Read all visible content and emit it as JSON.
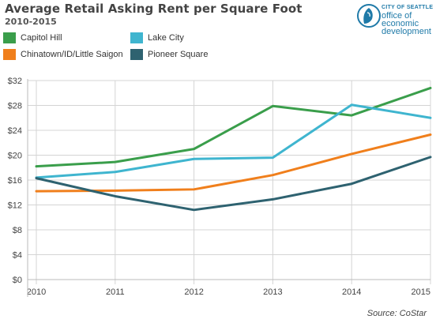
{
  "title": "Average Retail Asking Rent per Square Foot",
  "subtitle": "2010-2015",
  "logo": {
    "city": "CITY OF SEATTLE",
    "dept_lines": [
      "office of",
      "economic",
      "development"
    ],
    "icon": "seattle-seal-icon",
    "color": "#1f7aa8"
  },
  "source": "Source: CoStar",
  "chart_data": {
    "type": "line",
    "x": [
      "2010",
      "2011",
      "2012",
      "2013",
      "2014",
      "2015"
    ],
    "ylim": [
      0,
      32
    ],
    "yticks": [
      "$0",
      "$4",
      "$8",
      "$12",
      "$16",
      "$20",
      "$24",
      "$28",
      "$32"
    ],
    "grid": true,
    "legend": "top",
    "series": [
      {
        "name": "Capitol Hill",
        "color": "#3a9e4b",
        "values": [
          18.2,
          18.9,
          21.0,
          27.9,
          26.4,
          30.8
        ]
      },
      {
        "name": "Lake City",
        "color": "#3fb5cf",
        "values": [
          16.4,
          17.3,
          19.4,
          19.6,
          28.1,
          26.0
        ]
      },
      {
        "name": "Chinatown/ID/Little Saigon",
        "color": "#f07f1c",
        "values": [
          14.2,
          14.3,
          14.5,
          16.8,
          20.2,
          23.3
        ]
      },
      {
        "name": "Pioneer Square",
        "color": "#2e6270",
        "values": [
          16.3,
          13.4,
          11.2,
          12.9,
          15.4,
          19.7
        ]
      }
    ]
  }
}
